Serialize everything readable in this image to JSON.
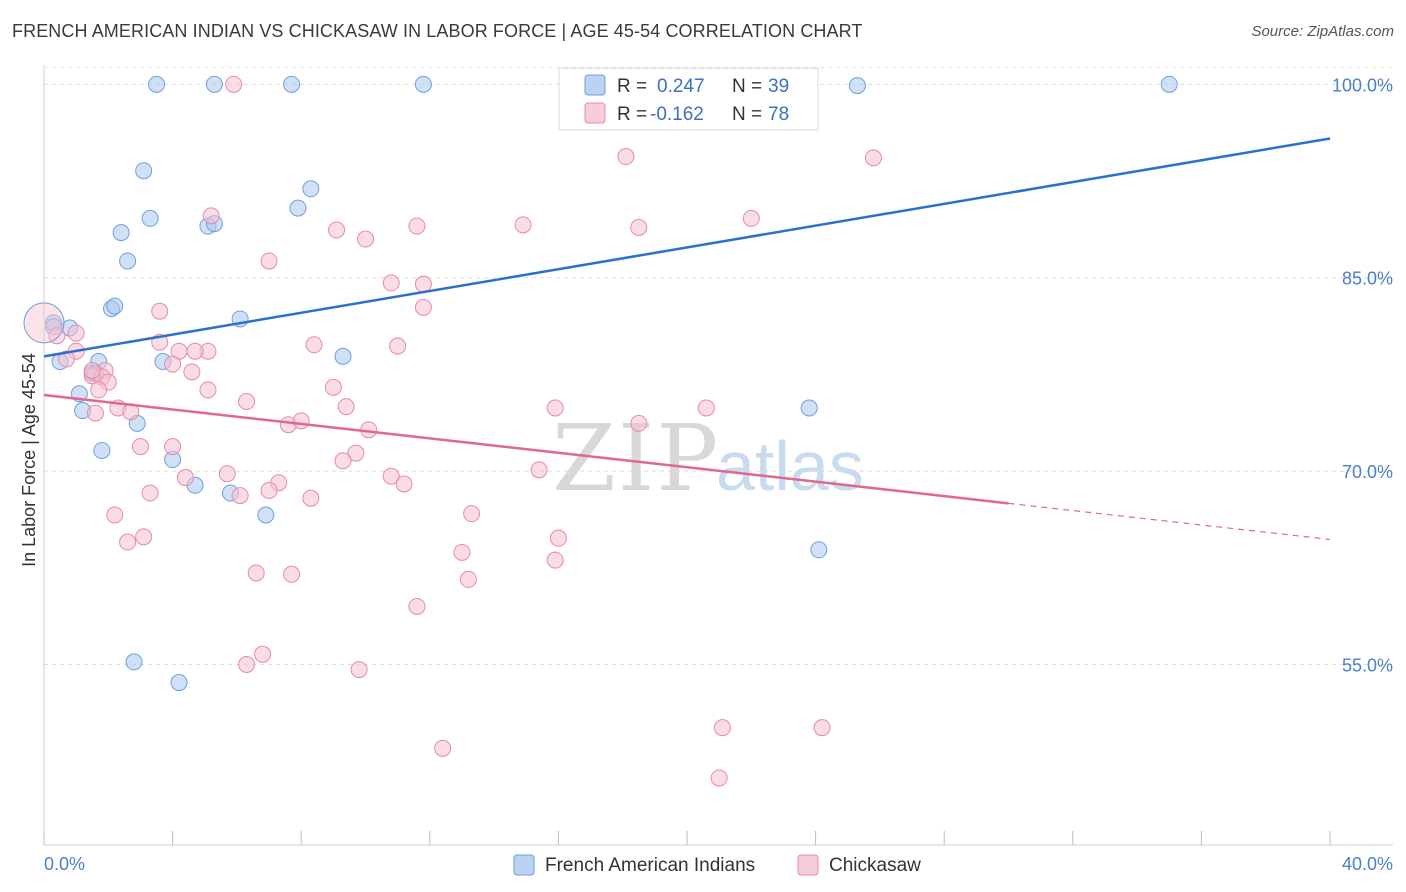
{
  "header": {
    "title": "FRENCH AMERICAN INDIAN VS CHICKASAW IN LABOR FORCE | AGE 45-54 CORRELATION CHART",
    "source": "Source: ZipAtlas.com"
  },
  "watermark": {
    "part1": "ZIP",
    "part2": "atlas"
  },
  "legend": {
    "rows": [
      {
        "r_label": "R =",
        "r_value": "0.247",
        "n_label": "N =",
        "n_value": "39",
        "color": "#a9c8ef",
        "stroke": "#6f9fdd"
      },
      {
        "r_label": "R =",
        "r_value": "-0.162",
        "n_label": "N =",
        "n_value": "78",
        "color": "#f6c0d1",
        "stroke": "#e88aa8"
      }
    ]
  },
  "bottom_legend": [
    {
      "label": "French American Indians",
      "color": "#a9c8ef",
      "stroke": "#6f9fdd"
    },
    {
      "label": "Chickasaw",
      "color": "#f6c0d1",
      "stroke": "#e88aa8"
    }
  ],
  "chart_data": {
    "type": "scatter",
    "title": "FRENCH AMERICAN INDIAN VS CHICKASAW IN LABOR FORCE | AGE 45-54 CORRELATION CHART",
    "xlabel": "",
    "ylabel": "In Labor Force | Age 45-54",
    "xlim": [
      0,
      40
    ],
    "ylim": [
      41,
      101.5
    ],
    "x_tick_labels": [
      "0.0%",
      "40.0%"
    ],
    "y_ticks": [
      55,
      70,
      85,
      100
    ],
    "y_tick_labels": [
      "55.0%",
      "70.0%",
      "85.0%",
      "100.0%"
    ],
    "grid": true,
    "series": [
      {
        "name": "French American Indians",
        "color": "#a9c8ef",
        "stroke": "#6f9fdd",
        "trend": {
          "x": [
            0,
            40
          ],
          "y": [
            78.9,
            95.8
          ],
          "color": "#2d6fcf"
        },
        "points": [
          [
            3.5,
            100
          ],
          [
            5.3,
            100
          ],
          [
            7.7,
            100
          ],
          [
            11.8,
            100
          ],
          [
            17.2,
            100
          ],
          [
            35.0,
            100
          ],
          [
            3.1,
            93.3
          ],
          [
            8.3,
            91.9
          ],
          [
            7.9,
            90.4
          ],
          [
            3.3,
            89.6
          ],
          [
            5.1,
            89.0
          ],
          [
            5.3,
            89.2
          ],
          [
            2.4,
            88.5
          ],
          [
            2.6,
            86.3
          ],
          [
            2.1,
            82.6
          ],
          [
            2.2,
            82.8
          ],
          [
            6.1,
            81.8
          ],
          [
            0.3,
            81.5
          ],
          [
            0.8,
            81.1
          ],
          [
            0.3,
            81.2
          ],
          [
            0.5,
            78.5
          ],
          [
            1.7,
            78.5
          ],
          [
            3.7,
            78.5
          ],
          [
            9.3,
            78.9
          ],
          [
            1.5,
            77.6
          ],
          [
            1.1,
            76.0
          ],
          [
            1.2,
            74.7
          ],
          [
            2.9,
            73.7
          ],
          [
            1.8,
            71.6
          ],
          [
            4.0,
            70.9
          ],
          [
            4.7,
            68.9
          ],
          [
            5.8,
            68.3
          ],
          [
            6.9,
            66.6
          ],
          [
            24.1,
            63.9
          ],
          [
            25.3,
            99.9
          ],
          [
            23.8,
            74.9
          ],
          [
            2.8,
            55.2
          ],
          [
            4.2,
            53.6
          ],
          [
            1.6,
            77.6
          ]
        ]
      },
      {
        "name": "Chickasaw",
        "color": "#f6c0d1",
        "stroke": "#e88aa8",
        "trend": {
          "x": [
            0,
            30.0
          ],
          "y": [
            75.9,
            67.5
          ],
          "color": "#e0678f",
          "dashed_to": [
            40,
            64.7
          ]
        },
        "points": [
          [
            5.9,
            100
          ],
          [
            18.1,
            94.4
          ],
          [
            25.8,
            94.3
          ],
          [
            5.2,
            89.8
          ],
          [
            14.9,
            89.1
          ],
          [
            11.6,
            89.0
          ],
          [
            18.5,
            88.9
          ],
          [
            9.1,
            88.7
          ],
          [
            22.0,
            89.6
          ],
          [
            10.0,
            88.0
          ],
          [
            7.0,
            86.3
          ],
          [
            10.8,
            84.6
          ],
          [
            11.8,
            84.5
          ],
          [
            3.6,
            82.4
          ],
          [
            11.8,
            82.7
          ],
          [
            1.0,
            80.7
          ],
          [
            0.4,
            80.5
          ],
          [
            3.6,
            80.0
          ],
          [
            8.4,
            79.8
          ],
          [
            11.0,
            79.7
          ],
          [
            1.0,
            79.3
          ],
          [
            4.2,
            79.3
          ],
          [
            5.1,
            79.3
          ],
          [
            4.7,
            79.3
          ],
          [
            0.7,
            78.7
          ],
          [
            4.0,
            78.3
          ],
          [
            1.9,
            77.8
          ],
          [
            4.6,
            77.7
          ],
          [
            1.5,
            77.4
          ],
          [
            1.8,
            77.3
          ],
          [
            2.0,
            76.9
          ],
          [
            9.0,
            76.5
          ],
          [
            1.7,
            76.3
          ],
          [
            5.1,
            76.3
          ],
          [
            6.3,
            75.4
          ],
          [
            9.4,
            75.0
          ],
          [
            2.3,
            74.9
          ],
          [
            1.6,
            74.5
          ],
          [
            2.7,
            74.6
          ],
          [
            15.9,
            74.9
          ],
          [
            20.6,
            74.9
          ],
          [
            18.5,
            73.7
          ],
          [
            7.6,
            73.6
          ],
          [
            8.0,
            73.9
          ],
          [
            10.1,
            73.2
          ],
          [
            3.0,
            71.9
          ],
          [
            4.0,
            71.9
          ],
          [
            9.7,
            71.4
          ],
          [
            9.3,
            70.8
          ],
          [
            15.4,
            70.1
          ],
          [
            4.4,
            69.5
          ],
          [
            5.7,
            69.8
          ],
          [
            10.8,
            69.6
          ],
          [
            7.3,
            69.1
          ],
          [
            11.2,
            69.0
          ],
          [
            7.0,
            68.5
          ],
          [
            6.1,
            68.1
          ],
          [
            3.3,
            68.3
          ],
          [
            8.3,
            67.9
          ],
          [
            2.2,
            66.6
          ],
          [
            13.3,
            66.7
          ],
          [
            2.6,
            64.5
          ],
          [
            3.1,
            64.9
          ],
          [
            16.0,
            64.8
          ],
          [
            13.0,
            63.7
          ],
          [
            15.9,
            63.1
          ],
          [
            13.2,
            61.6
          ],
          [
            6.6,
            62.1
          ],
          [
            7.7,
            62.0
          ],
          [
            11.6,
            59.5
          ],
          [
            6.8,
            55.8
          ],
          [
            6.3,
            55.0
          ],
          [
            9.8,
            54.6
          ],
          [
            21.1,
            50.1
          ],
          [
            24.2,
            50.1
          ],
          [
            12.4,
            48.5
          ],
          [
            21.0,
            46.2
          ],
          [
            1.5,
            77.8
          ]
        ]
      }
    ]
  }
}
